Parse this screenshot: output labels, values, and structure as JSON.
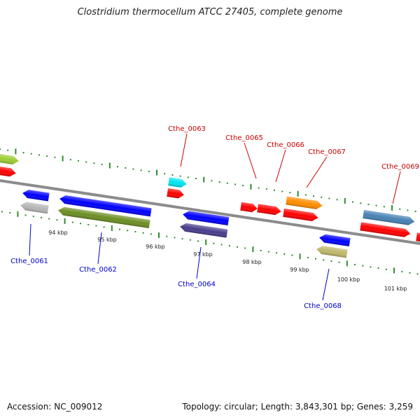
{
  "title": "Clostridium thermocellum ATCC 27405, complete genome",
  "footer": {
    "accession_label": "Accession:",
    "accession": "NC_009012",
    "topology_label": "Topology:",
    "topology": "circular",
    "length_label": "Length:",
    "length": "3,843,301 bp",
    "genes_label": "Genes:",
    "genes": "3,259"
  },
  "colors": {
    "backbone": "#8c8c8c",
    "tick": "#2e8b2e",
    "label_top": "#cc0000",
    "label_bottom": "#0000cc"
  },
  "kbp_labels": [
    "94 kbp",
    "95 kbp",
    "96 kbp",
    "97 kbp",
    "98 kbp",
    "99 kbp",
    "100 kbp",
    "101 kbp"
  ],
  "genes_top": [
    {
      "name": "",
      "color": "#9acd32",
      "strand": "forward"
    },
    {
      "name": "",
      "color": "#ff0000",
      "strand": "forward"
    },
    {
      "name": "Cthe_0063",
      "color": "#00e5ee",
      "strand": "forward"
    },
    {
      "name": "",
      "color": "#ff0000",
      "strand": "forward"
    },
    {
      "name": "Cthe_0065",
      "color": "#ff0000",
      "strand": "forward"
    },
    {
      "name": "Cthe_0066",
      "color": "#ff0000",
      "strand": "forward"
    },
    {
      "name": "Cthe_0067",
      "color": "#ff8c00",
      "strand": "forward"
    },
    {
      "name": "",
      "color": "#ff0000",
      "strand": "forward"
    },
    {
      "name": "Cthe_0069",
      "color": "#4682b4",
      "strand": "forward"
    },
    {
      "name": "",
      "color": "#ff0000",
      "strand": "forward"
    },
    {
      "name": "",
      "color": "#ff0000",
      "strand": "forward"
    }
  ],
  "genes_bottom": [
    {
      "name": "",
      "color": "#0000ff",
      "strand": "reverse"
    },
    {
      "name": "Cthe_0061",
      "color": "#b5b5b5",
      "strand": "reverse"
    },
    {
      "name": "",
      "color": "#0000ff",
      "strand": "reverse"
    },
    {
      "name": "Cthe_0062",
      "color": "#6b8e23",
      "strand": "reverse"
    },
    {
      "name": "",
      "color": "#0000ff",
      "strand": "reverse"
    },
    {
      "name": "Cthe_0064",
      "color": "#483d8b",
      "strand": "reverse"
    },
    {
      "name": "",
      "color": "#0000ff",
      "strand": "reverse"
    },
    {
      "name": "Cthe_0068",
      "color": "#bdb76b",
      "strand": "reverse"
    }
  ]
}
